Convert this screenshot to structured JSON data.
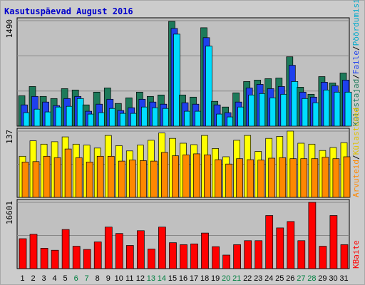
{
  "title": "Kasutuspäevad August 2016",
  "chart_data": [
    {
      "type": "bar",
      "panel": "top",
      "ymax_label": "1490",
      "ymax": 1490,
      "categories": [
        "1",
        "2",
        "3",
        "4",
        "5",
        "6",
        "7",
        "8",
        "9",
        "10",
        "11",
        "12",
        "13",
        "14",
        "15",
        "16",
        "17",
        "18",
        "19",
        "20",
        "21",
        "22",
        "23",
        "24",
        "25",
        "26",
        "27",
        "28",
        "29",
        "30",
        "31"
      ],
      "series": [
        {
          "name": "Külastajad",
          "color": "#1d7a5a",
          "values": [
            430,
            560,
            420,
            390,
            530,
            510,
            300,
            480,
            540,
            320,
            400,
            480,
            420,
            440,
            1480,
            440,
            410,
            1390,
            350,
            270,
            470,
            630,
            650,
            670,
            680,
            980,
            550,
            450,
            700,
            610,
            750
          ]
        },
        {
          "name": "Faile",
          "color": "#1e40ee",
          "values": [
            300,
            420,
            340,
            290,
            390,
            420,
            210,
            310,
            380,
            220,
            260,
            380,
            340,
            310,
            1380,
            330,
            310,
            1250,
            300,
            190,
            340,
            540,
            590,
            530,
            560,
            860,
            480,
            410,
            620,
            570,
            650
          ]
        },
        {
          "name": "Pöördumisi",
          "color": "#00ddff",
          "values": [
            190,
            240,
            200,
            270,
            280,
            390,
            170,
            190,
            250,
            180,
            180,
            270,
            260,
            250,
            1300,
            210,
            210,
            1130,
            170,
            130,
            270,
            440,
            460,
            400,
            450,
            630,
            390,
            330,
            510,
            480,
            480
          ]
        }
      ]
    },
    {
      "type": "bar",
      "panel": "middle",
      "ymax_label": "137",
      "ymax": 137,
      "categories": [
        "1",
        "2",
        "3",
        "4",
        "5",
        "6",
        "7",
        "8",
        "9",
        "10",
        "11",
        "12",
        "13",
        "14",
        "15",
        "16",
        "17",
        "18",
        "19",
        "20",
        "21",
        "22",
        "23",
        "24",
        "25",
        "26",
        "27",
        "28",
        "29",
        "30",
        "31"
      ],
      "series": [
        {
          "name": "Külastused",
          "color": "#ffff00",
          "values": [
            85,
            117,
            110,
            115,
            125,
            110,
            108,
            102,
            128,
            107,
            96,
            108,
            118,
            133,
            122,
            112,
            109,
            128,
            101,
            84,
            118,
            128,
            95,
            122,
            126,
            137,
            112,
            110,
            97,
            103,
            113
          ]
        },
        {
          "name": "Arvuteid",
          "color": "#ff8800",
          "values": [
            73,
            74,
            85,
            82,
            100,
            82,
            73,
            85,
            85,
            75,
            77,
            76,
            75,
            93,
            86,
            88,
            90,
            88,
            78,
            69,
            80,
            78,
            77,
            81,
            82,
            80,
            80,
            80,
            83,
            80,
            84
          ]
        }
      ]
    },
    {
      "type": "bar",
      "panel": "bottom",
      "ymax_label": "16601",
      "ymax": 16601,
      "categories": [
        "1",
        "2",
        "3",
        "4",
        "5",
        "6",
        "7",
        "8",
        "9",
        "10",
        "11",
        "12",
        "13",
        "14",
        "15",
        "16",
        "17",
        "18",
        "19",
        "20",
        "21",
        "22",
        "23",
        "24",
        "25",
        "26",
        "27",
        "28",
        "29",
        "30",
        "31"
      ],
      "series": [
        {
          "name": "KBaite",
          "color": "#ff0000",
          "values": [
            7500,
            8600,
            5100,
            4600,
            9800,
            5600,
            4800,
            6700,
            10400,
            8800,
            5800,
            9500,
            4900,
            10400,
            6500,
            6000,
            6200,
            8900,
            5500,
            3400,
            6000,
            7000,
            7000,
            13300,
            10200,
            11800,
            7000,
            16600,
            5600,
            13300,
            6000
          ]
        }
      ]
    }
  ],
  "right_legend": {
    "top": [
      {
        "text": "Külastajad",
        "color": "#1d7a5a"
      },
      {
        "text": "Faile",
        "color": "#1e40ee"
      },
      {
        "text": "Pöördumisi",
        "color": "#00aacc"
      }
    ],
    "middle": [
      {
        "text": "Arvuteid",
        "color": "#ff8800"
      },
      {
        "text": "Külastused",
        "color": "#e0c000"
      }
    ],
    "bottom": [
      {
        "text": "KBaite",
        "color": "#ff0000"
      }
    ]
  },
  "weekend_days": [
    "6",
    "7",
    "13",
    "14",
    "20",
    "21",
    "27",
    "28"
  ],
  "colors": {
    "weekday": "#000000",
    "weekend": "#008040",
    "panel_bg": "#c0c0c0",
    "grid": "#888888"
  }
}
